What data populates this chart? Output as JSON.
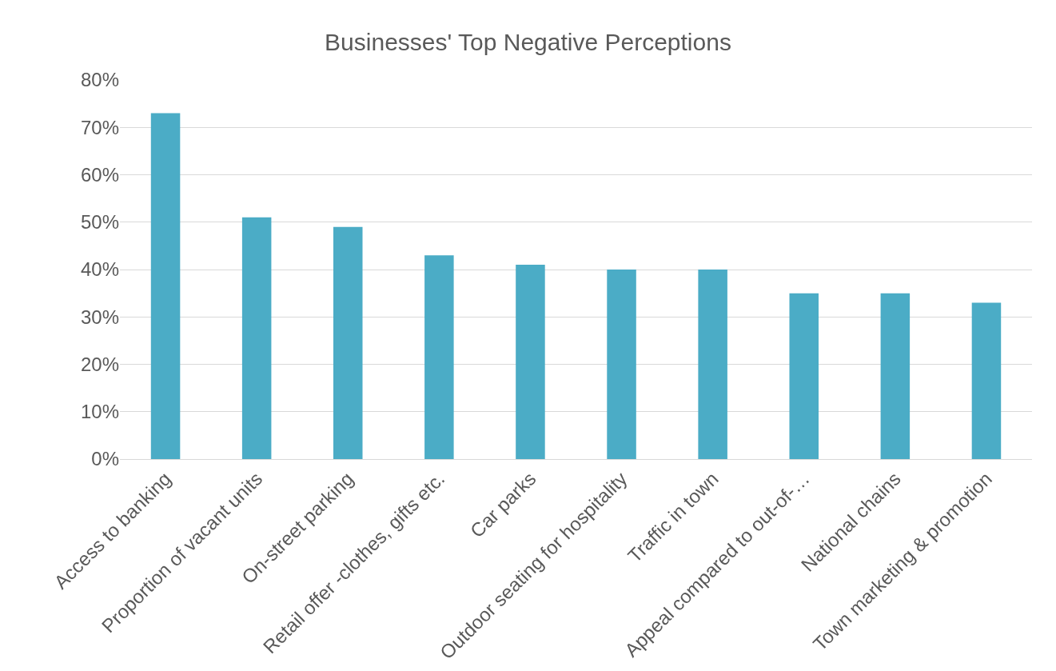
{
  "chart_data": {
    "type": "bar",
    "title": "Businesses' Top Negative Perceptions",
    "categories": [
      "Access to banking",
      "Proportion of vacant units",
      "On-street parking",
      "Retail offer -clothes, gifts etc.",
      "Car parks",
      "Outdoor seating for hospitality",
      "Traffic in town",
      "Appeal compared to out-of-…",
      "National chains",
      "Town marketing & promotion"
    ],
    "values": [
      73,
      51,
      49,
      43,
      41,
      40,
      40,
      35,
      35,
      33
    ],
    "color": "#4bacc6",
    "ylim": [
      0,
      80
    ],
    "yticks": [
      {
        "value": 0,
        "label": "0%"
      },
      {
        "value": 10,
        "label": "10%"
      },
      {
        "value": 20,
        "label": "20%"
      },
      {
        "value": 30,
        "label": "30%"
      },
      {
        "value": 40,
        "label": "40%"
      },
      {
        "value": 50,
        "label": "50%"
      },
      {
        "value": 60,
        "label": "60%"
      },
      {
        "value": 70,
        "label": "70%"
      },
      {
        "value": 80,
        "label": "80%"
      }
    ],
    "grid": "y"
  }
}
